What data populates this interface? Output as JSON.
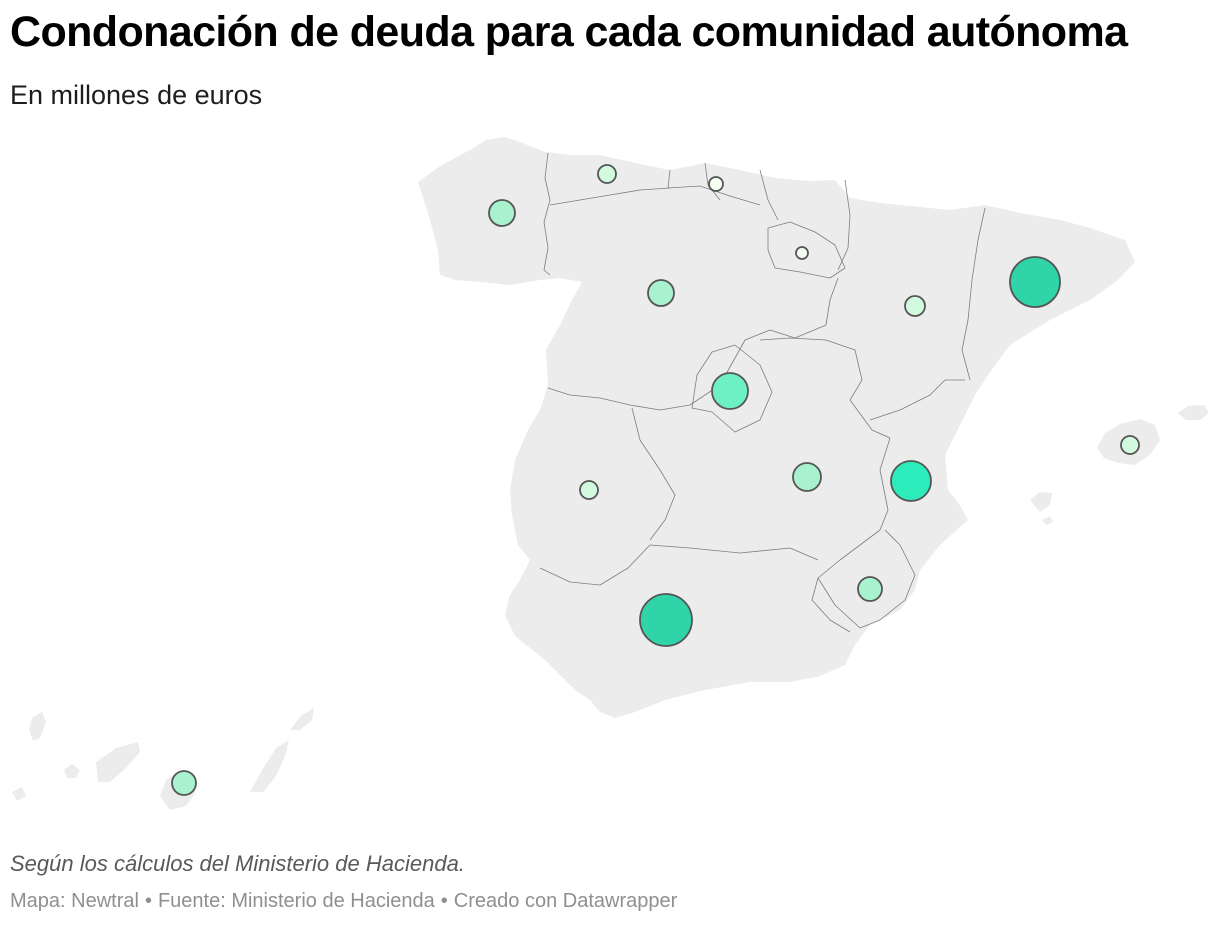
{
  "title": "Condonación de deuda para cada comunidad autónoma",
  "subtitle": "En millones de euros",
  "note": "Según los cálculos del Ministerio de Hacienda.",
  "footer": {
    "map_label": "Mapa: Newtral",
    "source_label": "Fuente: Ministerio de Hacienda",
    "created_label": "Creado con Datawrapper",
    "separator": "•"
  },
  "colors": {
    "land": "#ececec",
    "border": "#7d7d7d",
    "bubble_stroke": "#555555",
    "scale": [
      "#f5fff0",
      "#d2fadf",
      "#a8f2cd",
      "#6cf0c4",
      "#2decbc",
      "#2fd4a8"
    ]
  },
  "regions": [
    {
      "name": "Galicia",
      "level": 2
    },
    {
      "name": "Asturias",
      "level": 1
    },
    {
      "name": "Cantabria",
      "level": 0
    },
    {
      "name": "País Vasco",
      "level": 0
    },
    {
      "name": "Navarra",
      "level": 0
    },
    {
      "name": "La Rioja",
      "level": 0
    },
    {
      "name": "Aragón",
      "level": 1
    },
    {
      "name": "Cataluña",
      "level": 5
    },
    {
      "name": "Castilla y León",
      "level": 2
    },
    {
      "name": "Madrid",
      "level": 3
    },
    {
      "name": "Extremadura",
      "level": 1
    },
    {
      "name": "Castilla-La Mancha",
      "level": 2
    },
    {
      "name": "Comunidad Valenciana",
      "level": 4
    },
    {
      "name": "Región de Murcia",
      "level": 2
    },
    {
      "name": "Andalucía",
      "level": 5
    },
    {
      "name": "Islas Baleares",
      "level": 1
    },
    {
      "name": "Canarias",
      "level": 2
    }
  ]
}
